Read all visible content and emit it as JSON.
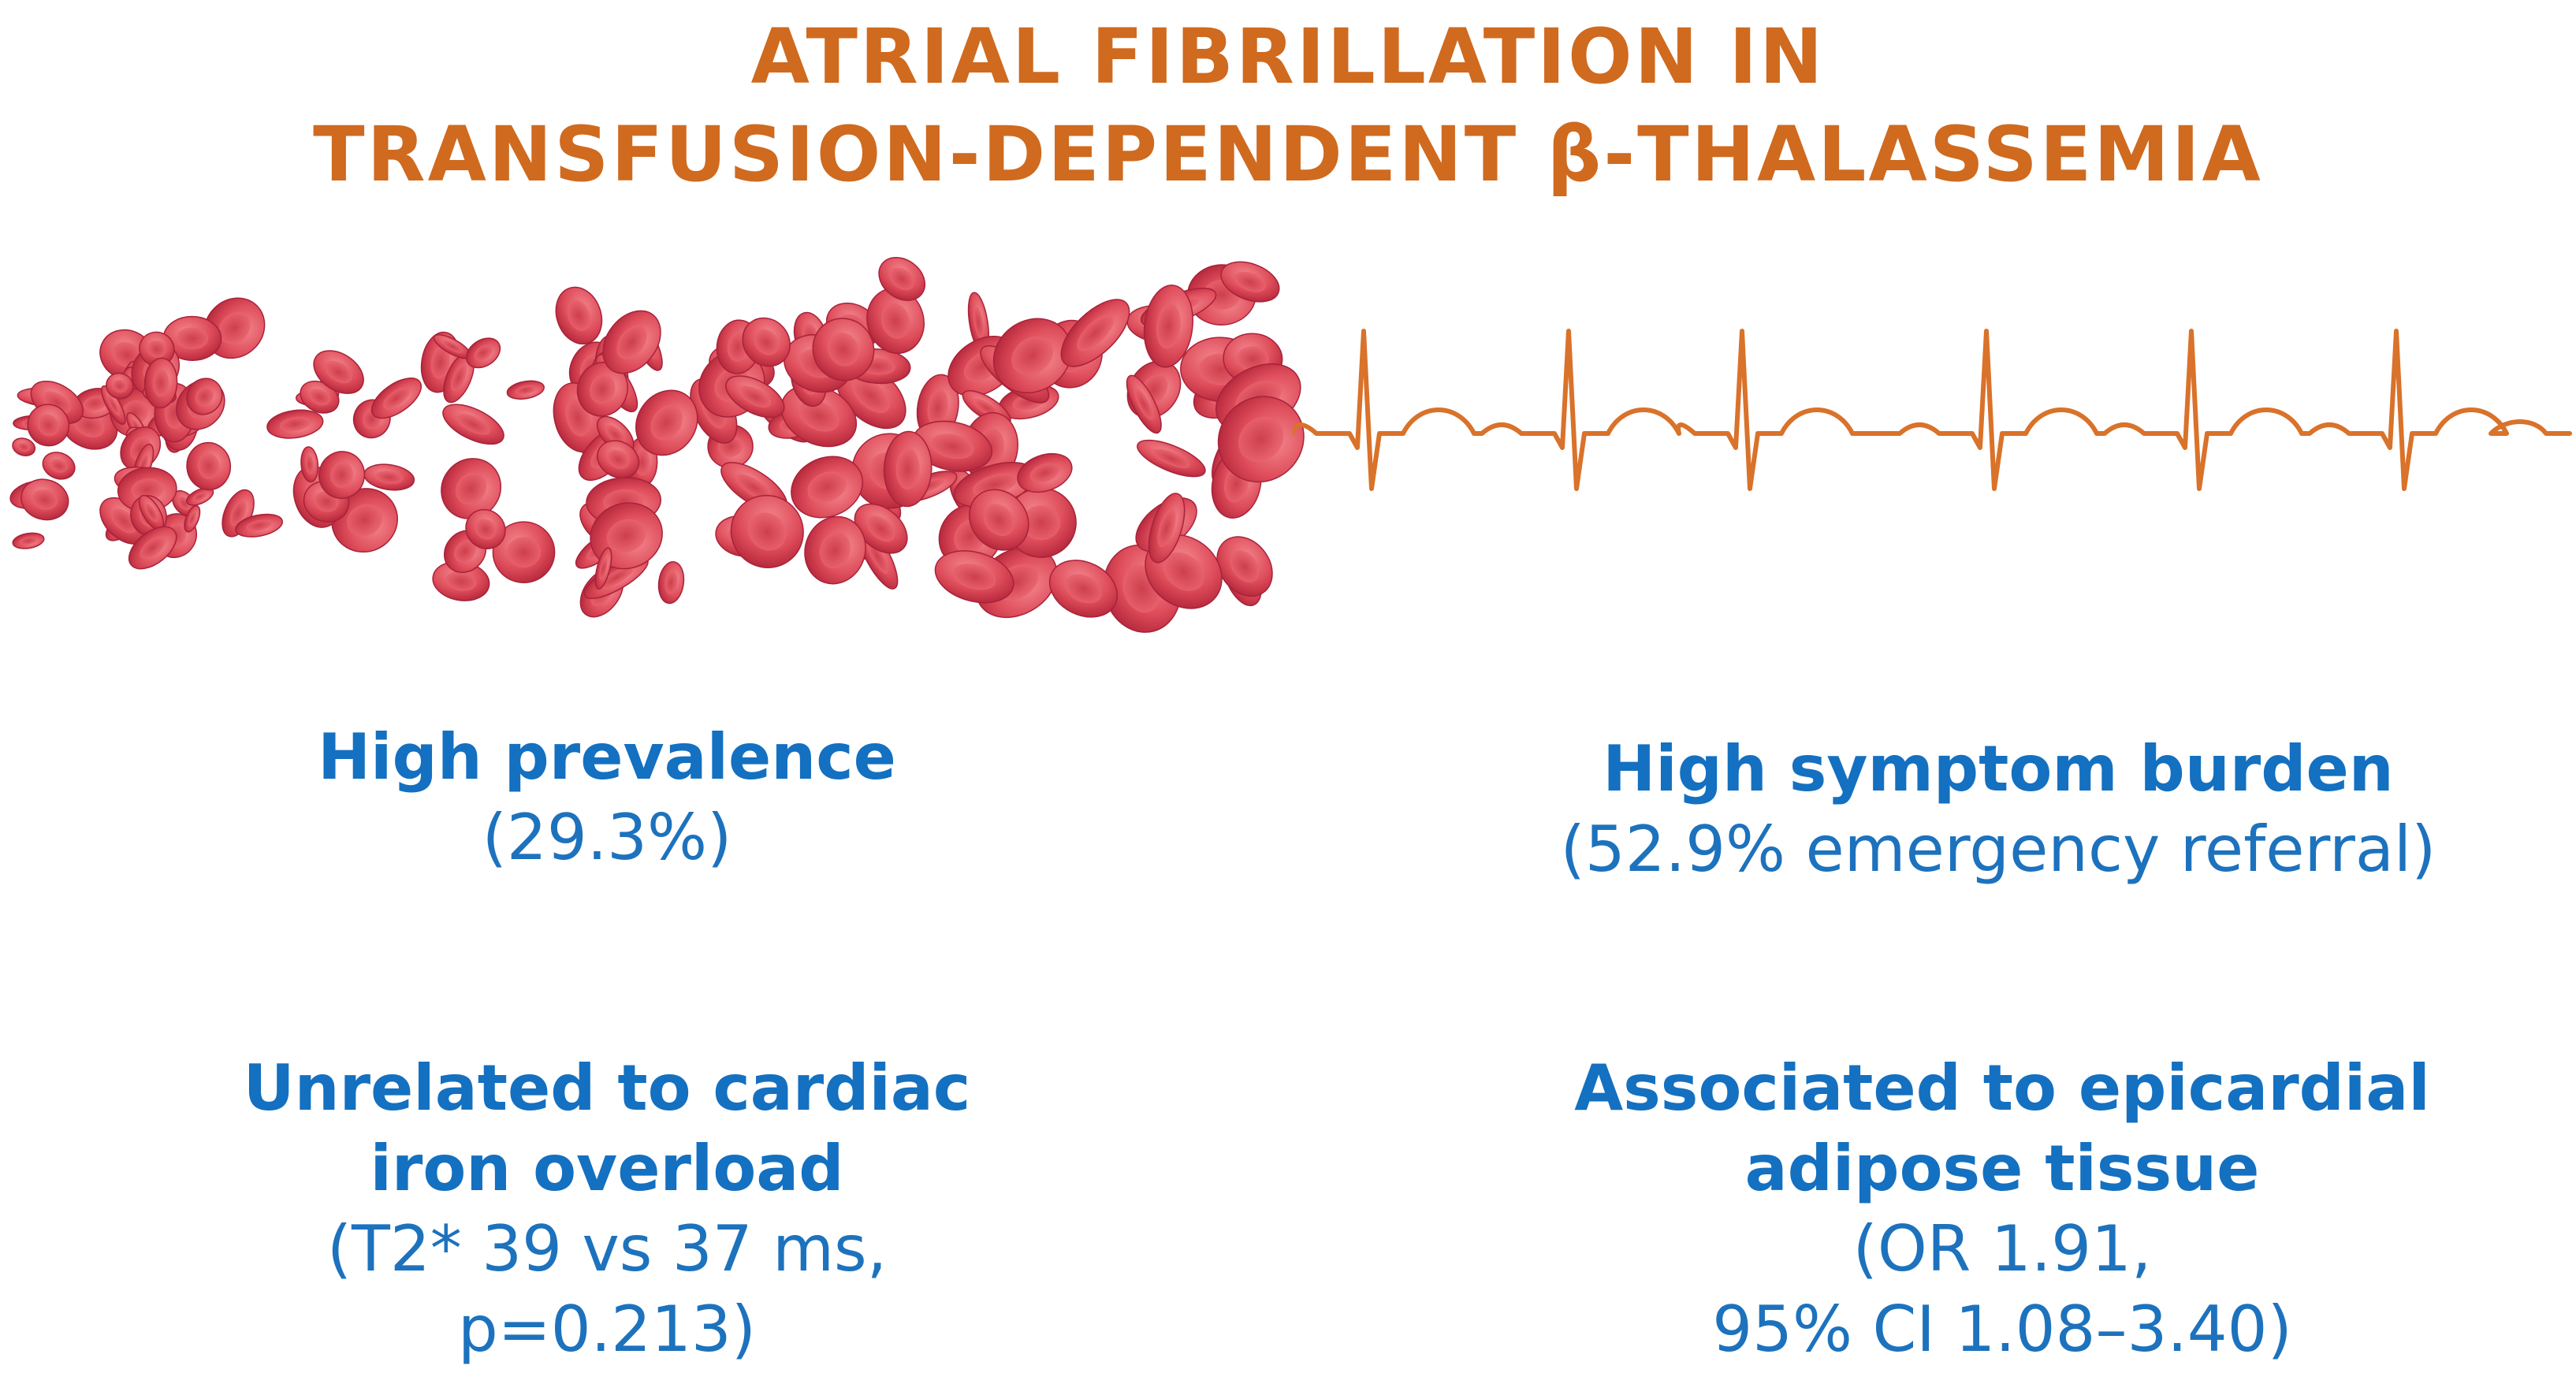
{
  "title": {
    "line1": "ATRIAL FIBRILLATION IN",
    "line2": "TRANSFUSION-DEPENDENT β-THALASSEMIA"
  },
  "colors": {
    "title": "#cf6a1f",
    "ecg": "#d9722a",
    "text": "#1a73c2",
    "cell": "#e0505d",
    "cell_dark": "#b8283a",
    "cell_light": "#f07e86"
  },
  "illustrations": {
    "left": "red-blood-cells",
    "right": "ecg-trace"
  },
  "findings": [
    {
      "head": "High prevalence",
      "detail": "(29.3%)"
    },
    {
      "head": "High symptom burden",
      "detail": "(52.9% emergency referral)"
    },
    {
      "head_lines": [
        "Unrelated to cardiac",
        "iron overload"
      ],
      "detail_lines": [
        "(T2* 39 vs 37 ms,",
        "p=0.213)"
      ]
    },
    {
      "head_lines": [
        "Associated to epicardial",
        "adipose tissue"
      ],
      "detail_lines": [
        "(OR 1.91,",
        "95% CI 1.08–3.40)"
      ]
    }
  ]
}
